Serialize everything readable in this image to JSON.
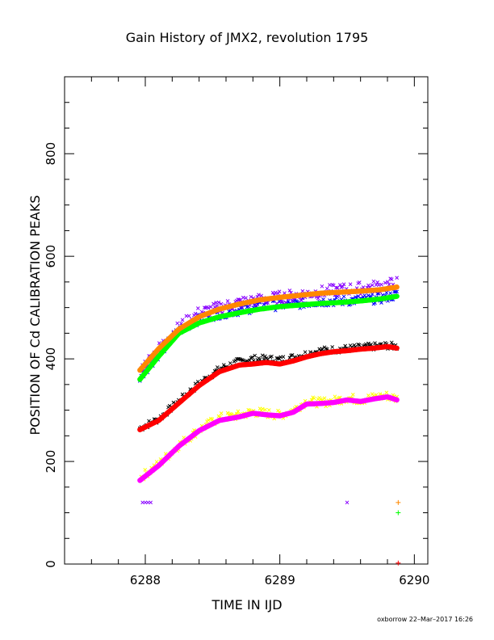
{
  "chart_data": {
    "type": "scatter",
    "title": "Gain History of JMX2, revolution 1795",
    "xlabel": "TIME IN IJD",
    "ylabel": "POSITION OF Cd CALIBRATION PEAKS",
    "xlim": [
      6287.4,
      6290.1
    ],
    "ylim": [
      0,
      950
    ],
    "x_ticks": [
      6288,
      6289,
      6290
    ],
    "y_ticks": [
      0,
      200,
      400,
      600,
      800
    ],
    "grid": false,
    "legend": "none",
    "series": [
      {
        "color": "#000000",
        "marker": "x",
        "noise": 7,
        "x": [
          6287.96,
          6288.1,
          6288.25,
          6288.4,
          6288.55,
          6288.7,
          6288.8,
          6288.9,
          6289.0,
          6289.1,
          6289.2,
          6289.3,
          6289.4,
          6289.5,
          6289.6,
          6289.7,
          6289.8,
          6289.87
        ],
        "y": [
          265,
          283,
          318,
          352,
          380,
          395,
          400,
          400,
          398,
          403,
          410,
          416,
          418,
          420,
          422,
          424,
          426,
          424
        ]
      },
      {
        "color": "#ff0000",
        "marker": "dot",
        "noise": 0,
        "x": [
          6287.96,
          6288.1,
          6288.25,
          6288.4,
          6288.55,
          6288.7,
          6288.8,
          6288.9,
          6289.0,
          6289.1,
          6289.2,
          6289.3,
          6289.4,
          6289.5,
          6289.6,
          6289.7,
          6289.8,
          6289.87
        ],
        "y": [
          262,
          280,
          314,
          348,
          375,
          388,
          390,
          393,
          390,
          396,
          404,
          410,
          414,
          416,
          419,
          421,
          424,
          421
        ]
      },
      {
        "color": "#ffff00",
        "marker": "x",
        "noise": 9,
        "x": [
          6287.96,
          6288.1,
          6288.25,
          6288.4,
          6288.55,
          6288.7,
          6288.8,
          6288.9,
          6289.0,
          6289.1,
          6289.2,
          6289.3,
          6289.4,
          6289.5,
          6289.6,
          6289.7,
          6289.8,
          6289.87
        ],
        "y": [
          168,
          195,
          232,
          262,
          285,
          290,
          297,
          294,
          290,
          300,
          318,
          315,
          318,
          324,
          320,
          325,
          328,
          322
        ]
      },
      {
        "color": "#ff00ff",
        "marker": "dot",
        "noise": 0,
        "x": [
          6287.96,
          6288.1,
          6288.25,
          6288.4,
          6288.55,
          6288.7,
          6288.8,
          6288.9,
          6289.0,
          6289.1,
          6289.2,
          6289.3,
          6289.4,
          6289.5,
          6289.6,
          6289.7,
          6289.8,
          6289.87
        ],
        "y": [
          163,
          192,
          230,
          260,
          280,
          287,
          294,
          291,
          289,
          296,
          312,
          313,
          315,
          320,
          317,
          322,
          326,
          320
        ]
      },
      {
        "color": "#0000ff",
        "marker": "x",
        "noise": 10,
        "x": [
          6287.96,
          6288.1,
          6288.25,
          6288.4,
          6288.55,
          6288.7,
          6288.85,
          6289.0,
          6289.15,
          6289.3,
          6289.45,
          6289.6,
          6289.75,
          6289.87
        ],
        "y": [
          365,
          410,
          455,
          478,
          488,
          495,
          502,
          505,
          508,
          512,
          513,
          515,
          518,
          525
        ]
      },
      {
        "color": "#8800ff",
        "marker": "x",
        "noise": 12,
        "x": [
          6287.96,
          6288.1,
          6288.25,
          6288.4,
          6288.55,
          6288.7,
          6288.85,
          6289.0,
          6289.15,
          6289.3,
          6289.45,
          6289.6,
          6289.75,
          6289.87
        ],
        "y": [
          378,
          420,
          462,
          490,
          500,
          510,
          515,
          520,
          525,
          530,
          535,
          538,
          542,
          548
        ]
      },
      {
        "color": "#00ff00",
        "marker": "dot",
        "noise": 0,
        "x": [
          6287.96,
          6288.1,
          6288.25,
          6288.4,
          6288.55,
          6288.7,
          6288.85,
          6289.0,
          6289.15,
          6289.3,
          6289.45,
          6289.6,
          6289.75,
          6289.87
        ],
        "y": [
          360,
          405,
          450,
          470,
          482,
          490,
          497,
          502,
          505,
          508,
          510,
          513,
          517,
          522
        ]
      },
      {
        "color": "#ff8800",
        "marker": "dot",
        "noise": 0,
        "x": [
          6287.96,
          6288.1,
          6288.25,
          6288.4,
          6288.55,
          6288.7,
          6288.85,
          6289.0,
          6289.15,
          6289.3,
          6289.45,
          6289.6,
          6289.75,
          6289.87
        ],
        "y": [
          378,
          420,
          458,
          482,
          497,
          507,
          515,
          520,
          524,
          528,
          530,
          532,
          535,
          540
        ]
      }
    ],
    "outliers": [
      {
        "x": 6287.98,
        "y": 120,
        "color": "#8800ff",
        "marker": "x"
      },
      {
        "x": 6288.0,
        "y": 120,
        "color": "#8800ff",
        "marker": "x"
      },
      {
        "x": 6288.02,
        "y": 120,
        "color": "#8800ff",
        "marker": "x"
      },
      {
        "x": 6288.04,
        "y": 120,
        "color": "#8800ff",
        "marker": "x"
      },
      {
        "x": 6289.5,
        "y": 120,
        "color": "#8800ff",
        "marker": "x"
      },
      {
        "x": 6289.88,
        "y": 120,
        "color": "#ff8800",
        "marker": "+"
      },
      {
        "x": 6289.88,
        "y": 100,
        "color": "#00ff00",
        "marker": "+"
      },
      {
        "x": 6289.88,
        "y": 2,
        "color": "#ff0000",
        "marker": "+"
      }
    ]
  },
  "footer": {
    "credit": "oxborrow 22–Mar–2017 16:26"
  }
}
